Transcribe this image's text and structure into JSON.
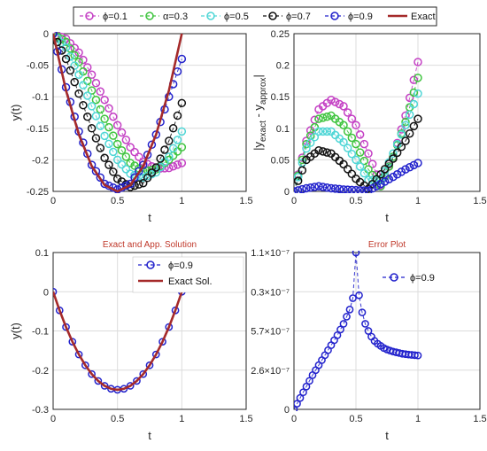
{
  "chart_data": [
    {
      "type": "line",
      "title": "",
      "xlabel": "t",
      "ylabel": "y(t)",
      "xlim": [
        0,
        1.5
      ],
      "ylim": [
        -0.25,
        0
      ],
      "xticks": [
        "0",
        "0.5",
        "1",
        "1.5"
      ],
      "yticks": [
        "0",
        "-0.05",
        "-0.1",
        "-0.15",
        "-0.2",
        "-0.25"
      ],
      "grid": true,
      "legend": "top (shared across top row)",
      "series": [
        {
          "name": "ϕ=0.1",
          "color": "#c440c4",
          "marker": "circle",
          "x": [
            0,
            0.1,
            0.2,
            0.3,
            0.4,
            0.5,
            0.6,
            0.7,
            0.8,
            0.9,
            1.0
          ],
          "values": [
            0,
            -0.008,
            -0.03,
            -0.065,
            -0.105,
            -0.145,
            -0.18,
            -0.203,
            -0.214,
            -0.213,
            -0.205
          ]
        },
        {
          "name": "α=0.3",
          "color": "#3fc43f",
          "marker": "circle",
          "x": [
            0,
            0.1,
            0.2,
            0.3,
            0.4,
            0.5,
            0.6,
            0.7,
            0.8,
            0.9,
            1.0
          ],
          "values": [
            0,
            -0.013,
            -0.045,
            -0.09,
            -0.135,
            -0.175,
            -0.205,
            -0.218,
            -0.215,
            -0.2,
            -0.18
          ]
        },
        {
          "name": "ϕ=0.5",
          "color": "#4fd6d6",
          "marker": "circle",
          "x": [
            0,
            0.1,
            0.2,
            0.3,
            0.4,
            0.5,
            0.6,
            0.7,
            0.8,
            0.9,
            1.0
          ],
          "values": [
            0,
            -0.022,
            -0.065,
            -0.115,
            -0.162,
            -0.2,
            -0.222,
            -0.228,
            -0.22,
            -0.195,
            -0.155
          ]
        },
        {
          "name": "ϕ=0.7",
          "color": "#111111",
          "marker": "circle",
          "x": [
            0,
            0.1,
            0.2,
            0.3,
            0.4,
            0.5,
            0.6,
            0.7,
            0.8,
            0.9,
            1.0
          ],
          "values": [
            0,
            -0.04,
            -0.095,
            -0.15,
            -0.197,
            -0.23,
            -0.243,
            -0.237,
            -0.212,
            -0.17,
            -0.11
          ]
        },
        {
          "name": "ϕ=0.9",
          "color": "#2222cc",
          "marker": "circle",
          "x": [
            0,
            0.1,
            0.2,
            0.3,
            0.4,
            0.5,
            0.6,
            0.7,
            0.8,
            0.9,
            1.0
          ],
          "values": [
            0,
            -0.085,
            -0.155,
            -0.208,
            -0.238,
            -0.247,
            -0.238,
            -0.208,
            -0.16,
            -0.1,
            -0.04
          ]
        },
        {
          "name": "Exact",
          "color": "#a52a2a",
          "marker": "none",
          "x": [
            0,
            0.1,
            0.2,
            0.3,
            0.4,
            0.5,
            0.6,
            0.7,
            0.8,
            0.9,
            1.0
          ],
          "values": [
            0,
            -0.09,
            -0.16,
            -0.21,
            -0.24,
            -0.25,
            -0.24,
            -0.21,
            -0.16,
            -0.09,
            0
          ]
        }
      ]
    },
    {
      "type": "line",
      "title": "",
      "xlabel": "t",
      "ylabel": "|y_exact - y_approx|",
      "ylabel_parts": {
        "open": "|y",
        "sub1": "exact",
        "mid": " - y",
        "sub2": "approx",
        "close": "|"
      },
      "xlim": [
        0,
        1.5
      ],
      "ylim": [
        0,
        0.25
      ],
      "xticks": [
        "0",
        "0.5",
        "1",
        "1.5"
      ],
      "yticks": [
        "0",
        "0.05",
        "0.1",
        "0.15",
        "0.2",
        "0.25"
      ],
      "grid": true,
      "series": [
        {
          "name": "ϕ=0.1",
          "color": "#c440c4",
          "x": [
            0,
            0.1,
            0.2,
            0.3,
            0.4,
            0.5,
            0.6,
            0.7,
            0.8,
            0.9,
            1.0
          ],
          "values": [
            0,
            0.08,
            0.13,
            0.145,
            0.135,
            0.105,
            0.06,
            0.01,
            0.055,
            0.12,
            0.205
          ]
        },
        {
          "name": "α=0.3",
          "color": "#3fc43f",
          "x": [
            0,
            0.1,
            0.2,
            0.3,
            0.4,
            0.5,
            0.6,
            0.7,
            0.8,
            0.9,
            1.0
          ],
          "values": [
            0,
            0.075,
            0.115,
            0.12,
            0.105,
            0.075,
            0.035,
            0.008,
            0.055,
            0.11,
            0.18
          ]
        },
        {
          "name": "ϕ=0.5",
          "color": "#4fd6d6",
          "x": [
            0,
            0.1,
            0.2,
            0.3,
            0.4,
            0.5,
            0.6,
            0.7,
            0.8,
            0.9,
            1.0
          ],
          "values": [
            0,
            0.068,
            0.095,
            0.095,
            0.078,
            0.05,
            0.018,
            0.018,
            0.06,
            0.105,
            0.155
          ]
        },
        {
          "name": "ϕ=0.7",
          "color": "#111111",
          "x": [
            0,
            0.1,
            0.2,
            0.3,
            0.4,
            0.5,
            0.6,
            0.7,
            0.8,
            0.9,
            1.0
          ],
          "values": [
            0,
            0.05,
            0.065,
            0.06,
            0.043,
            0.02,
            0.004,
            0.027,
            0.052,
            0.08,
            0.115
          ]
        },
        {
          "name": "ϕ=0.9",
          "color": "#2222cc",
          "x": [
            0,
            0.1,
            0.2,
            0.3,
            0.4,
            0.5,
            0.6,
            0.7,
            0.8,
            0.9,
            1.0
          ],
          "values": [
            0,
            0.005,
            0.008,
            0.005,
            0.003,
            0.002,
            0.001,
            0.012,
            0.023,
            0.035,
            0.045
          ]
        }
      ]
    },
    {
      "type": "line",
      "title": "Exact and App. Solution",
      "xlabel": "t",
      "ylabel": "y(t)",
      "xlim": [
        0,
        1.5
      ],
      "ylim": [
        -0.3,
        0.1
      ],
      "xticks": [
        "0",
        "0.5",
        "1",
        "1.5"
      ],
      "yticks": [
        "0.1",
        "0",
        "-0.1",
        "-0.2",
        "-0.3"
      ],
      "grid": true,
      "legend": "top-right",
      "series": [
        {
          "name": "ϕ=0.9",
          "color": "#2222cc",
          "marker": "circle",
          "x": [
            0,
            0.05,
            0.1,
            0.15,
            0.2,
            0.25,
            0.3,
            0.35,
            0.4,
            0.45,
            0.5,
            0.55,
            0.6,
            0.65,
            0.7,
            0.75,
            0.8,
            0.85,
            0.9,
            0.95,
            1.0
          ],
          "values": [
            0,
            -0.0475,
            -0.09,
            -0.1275,
            -0.16,
            -0.1875,
            -0.21,
            -0.2275,
            -0.24,
            -0.2475,
            -0.25,
            -0.2475,
            -0.24,
            -0.2275,
            -0.21,
            -0.1875,
            -0.16,
            -0.1275,
            -0.09,
            -0.0475,
            0
          ]
        },
        {
          "name": "Exact Sol.",
          "color": "#a52a2a",
          "marker": "none",
          "x": [
            0,
            0.05,
            0.1,
            0.15,
            0.2,
            0.25,
            0.3,
            0.35,
            0.4,
            0.45,
            0.5,
            0.55,
            0.6,
            0.65,
            0.7,
            0.75,
            0.8,
            0.85,
            0.9,
            0.95,
            1.0
          ],
          "values": [
            0,
            -0.0475,
            -0.09,
            -0.1275,
            -0.16,
            -0.1875,
            -0.21,
            -0.2275,
            -0.24,
            -0.2475,
            -0.25,
            -0.2475,
            -0.24,
            -0.2275,
            -0.21,
            -0.1875,
            -0.16,
            -0.1275,
            -0.09,
            -0.0475,
            0
          ]
        }
      ]
    },
    {
      "type": "line",
      "title": "Error Plot",
      "xlabel": "t",
      "ylabel": "",
      "xlim": [
        0,
        1.5
      ],
      "ylim": [
        0,
        1.1e-07
      ],
      "xticks": [
        "0",
        "0.5",
        "1",
        "1.5"
      ],
      "yticks": [
        "1.1×10⁻⁷",
        "0.3×10⁻⁷",
        "5.7×10⁻⁷",
        "2.6×10⁻⁷",
        "0"
      ],
      "grid": true,
      "legend": "top-right",
      "series": [
        {
          "name": "ϕ=0.9",
          "color": "#2222cc",
          "marker": "circle",
          "x": [
            0,
            0.025,
            0.05,
            0.075,
            0.1,
            0.125,
            0.15,
            0.175,
            0.2,
            0.225,
            0.25,
            0.275,
            0.3,
            0.325,
            0.35,
            0.375,
            0.4,
            0.425,
            0.45,
            0.475,
            0.5,
            0.525,
            0.55,
            0.575,
            0.6,
            0.625,
            0.65,
            0.675,
            0.7,
            0.725,
            0.75,
            0.775,
            0.8,
            0.825,
            0.85,
            0.875,
            0.9,
            0.925,
            0.95,
            0.975,
            1.0
          ],
          "values": [
            0,
            4e-09,
            8e-09,
            1.2e-08,
            1.6e-08,
            2e-08,
            2.4e-08,
            2.75e-08,
            3.1e-08,
            3.45e-08,
            3.8e-08,
            4.15e-08,
            4.5e-08,
            4.85e-08,
            5.2e-08,
            5.6e-08,
            6e-08,
            6.5e-08,
            7e-08,
            7.8e-08,
            1.1e-07,
            8e-08,
            6.8e-08,
            6e-08,
            5.5e-08,
            5.1e-08,
            4.8e-08,
            4.6e-08,
            4.45e-08,
            4.3e-08,
            4.2e-08,
            4.12e-08,
            4.05e-08,
            4e-08,
            3.95e-08,
            3.9e-08,
            3.87e-08,
            3.84e-08,
            3.82e-08,
            3.8e-08,
            3.78e-08
          ]
        }
      ]
    }
  ]
}
